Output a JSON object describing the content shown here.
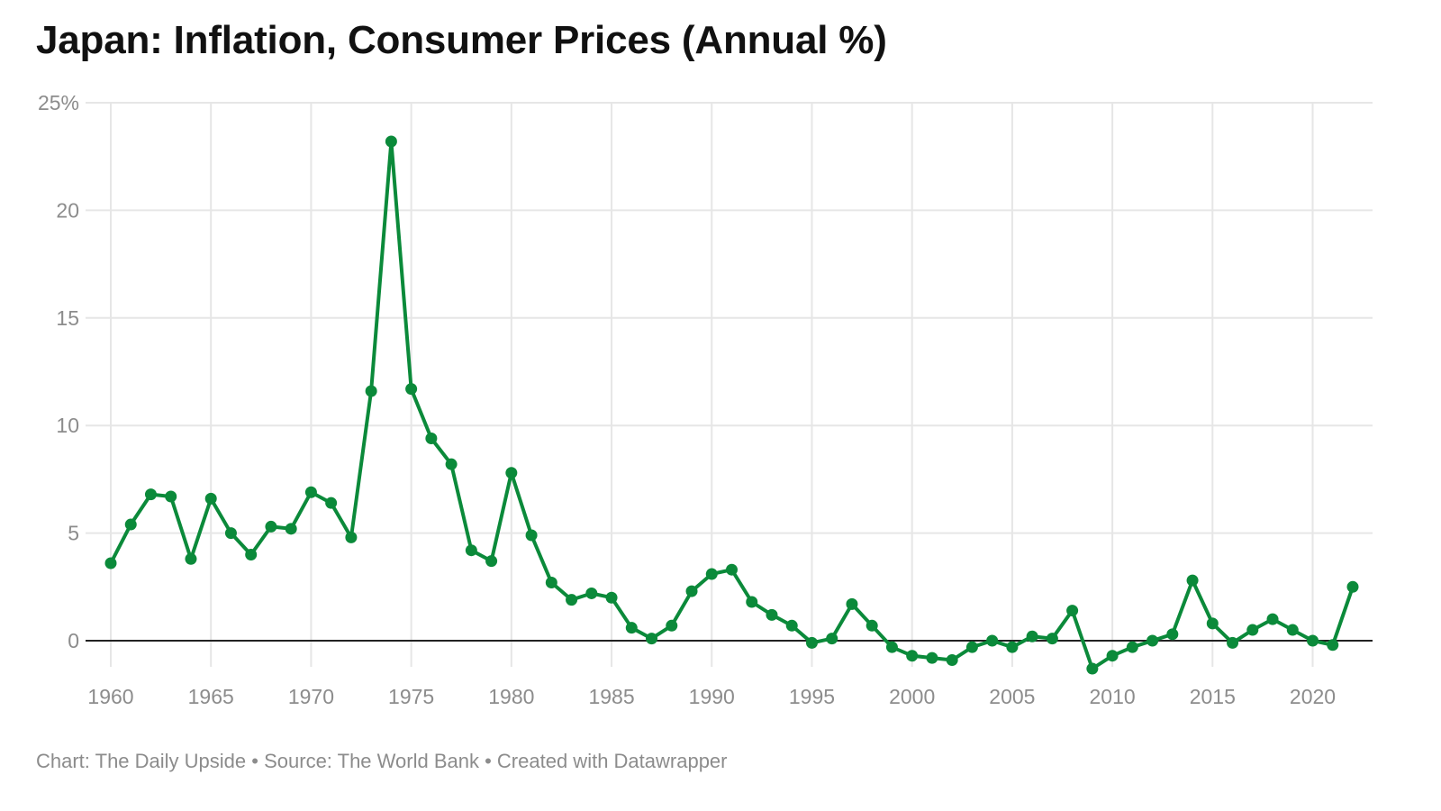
{
  "title": "Japan: Inflation, Consumer Prices (Annual %)",
  "footer": {
    "credit": "Chart: The Daily Upside",
    "separator": "•",
    "source": "Source: The World Bank",
    "tool": "Created with Datawrapper"
  },
  "colors": {
    "line": "#0b8a3a",
    "grid": "#e6e6e6",
    "baseline": "#222222",
    "axis_text": "#8c8c8c",
    "title": "#111111"
  },
  "chart_data": {
    "type": "line",
    "title": "Japan: Inflation, Consumer Prices (Annual %)",
    "xlabel": "",
    "ylabel": "",
    "xlim": [
      1960,
      2022
    ],
    "ylim": [
      -1.5,
      25
    ],
    "y_ticks": [
      {
        "value": 25,
        "label": "25%"
      },
      {
        "value": 20,
        "label": "20"
      },
      {
        "value": 15,
        "label": "15"
      },
      {
        "value": 10,
        "label": "10"
      },
      {
        "value": 5,
        "label": "5"
      },
      {
        "value": 0,
        "label": "0"
      }
    ],
    "x_ticks": [
      {
        "value": 1960,
        "label": "1960"
      },
      {
        "value": 1965,
        "label": "1965"
      },
      {
        "value": 1970,
        "label": "1970"
      },
      {
        "value": 1975,
        "label": "1975"
      },
      {
        "value": 1980,
        "label": "1980"
      },
      {
        "value": 1985,
        "label": "1985"
      },
      {
        "value": 1990,
        "label": "1990"
      },
      {
        "value": 1995,
        "label": "1995"
      },
      {
        "value": 2000,
        "label": "2000"
      },
      {
        "value": 2005,
        "label": "2005"
      },
      {
        "value": 2010,
        "label": "2010"
      },
      {
        "value": 2015,
        "label": "2015"
      },
      {
        "value": 2020,
        "label": "2020"
      }
    ],
    "grid": true,
    "series": [
      {
        "name": "Inflation, consumer prices (annual %)",
        "x": [
          1960,
          1961,
          1962,
          1963,
          1964,
          1965,
          1966,
          1967,
          1968,
          1969,
          1970,
          1971,
          1972,
          1973,
          1974,
          1975,
          1976,
          1977,
          1978,
          1979,
          1980,
          1981,
          1982,
          1983,
          1984,
          1985,
          1986,
          1987,
          1988,
          1989,
          1990,
          1991,
          1992,
          1993,
          1994,
          1995,
          1996,
          1997,
          1998,
          1999,
          2000,
          2001,
          2002,
          2003,
          2004,
          2005,
          2006,
          2007,
          2008,
          2009,
          2010,
          2011,
          2012,
          2013,
          2014,
          2015,
          2016,
          2017,
          2018,
          2019,
          2020,
          2021,
          2022
        ],
        "values": [
          3.6,
          5.4,
          6.8,
          6.7,
          3.8,
          6.6,
          5.0,
          4.0,
          5.3,
          5.2,
          6.9,
          6.4,
          4.8,
          11.6,
          23.2,
          11.7,
          9.4,
          8.2,
          4.2,
          3.7,
          7.8,
          4.9,
          2.7,
          1.9,
          2.2,
          2.0,
          0.6,
          0.1,
          0.7,
          2.3,
          3.1,
          3.3,
          1.8,
          1.2,
          0.7,
          -0.1,
          0.1,
          1.7,
          0.7,
          -0.3,
          -0.7,
          -0.8,
          -0.9,
          -0.3,
          0.0,
          -0.3,
          0.2,
          0.1,
          1.4,
          -1.3,
          -0.7,
          -0.3,
          0.0,
          0.3,
          2.8,
          0.8,
          -0.1,
          0.5,
          1.0,
          0.5,
          0.0,
          -0.2,
          2.5
        ]
      }
    ]
  }
}
